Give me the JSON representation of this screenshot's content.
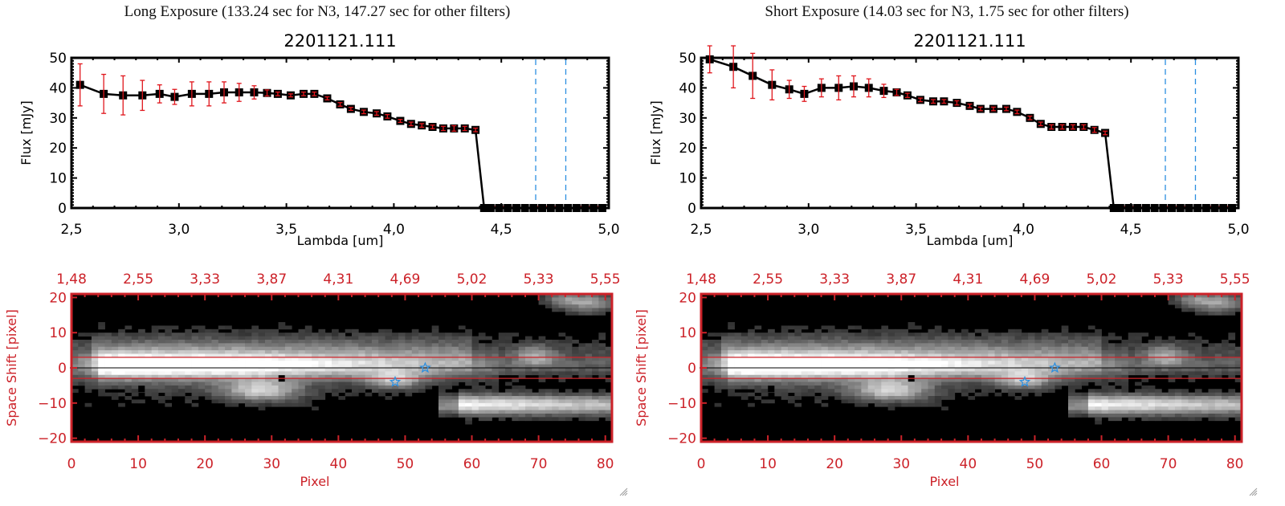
{
  "colors": {
    "axis": "#000000",
    "errorbar": "#e0161c",
    "filter_line": "#2b8fe0",
    "image_axis": "#cc2229",
    "marker": "#000000"
  },
  "chart_data": [
    {
      "type": "line",
      "panel": "left",
      "exposure_title": "Long Exposure (133.24 sec for N3, 147.27 sec for other filters)",
      "title": "2201121.111",
      "xlabel": "Lambda [um]",
      "ylabel": "Flux [mJy]",
      "xlim": [
        2.5,
        5.0
      ],
      "ylim": [
        0,
        50
      ],
      "xticks": [
        "2.5",
        "3.0",
        "3.5",
        "4.0",
        "4.5",
        "5.0"
      ],
      "yticks": [
        "0",
        "10",
        "20",
        "30",
        "40",
        "50"
      ],
      "vlines": [
        4.66,
        4.8
      ],
      "series": [
        {
          "name": "flux",
          "x": [
            2.54,
            2.65,
            2.74,
            2.83,
            2.91,
            2.98,
            3.06,
            3.14,
            3.21,
            3.28,
            3.35,
            3.41,
            3.46,
            3.52,
            3.58,
            3.63,
            3.69,
            3.75,
            3.8,
            3.86,
            3.92,
            3.97,
            4.03,
            4.08,
            4.13,
            4.18,
            4.23,
            4.28,
            4.33,
            4.38,
            4.42,
            4.45,
            4.49,
            4.53,
            4.57,
            4.61,
            4.65,
            4.69,
            4.73,
            4.77,
            4.81,
            4.85,
            4.89,
            4.93,
            4.97
          ],
          "y": [
            41,
            38,
            37.5,
            37.5,
            38,
            37,
            38,
            38,
            38.5,
            38.5,
            38.5,
            38.3,
            38,
            37.5,
            38,
            38,
            36.5,
            34.5,
            33,
            32,
            31.5,
            30.5,
            29,
            28,
            27.5,
            27,
            26.5,
            26.5,
            26.5,
            26,
            0,
            0,
            0,
            0,
            0,
            0,
            0,
            0,
            0,
            0,
            0,
            0,
            0,
            0,
            0
          ],
          "err": [
            7,
            6.5,
            6.5,
            5,
            3,
            2.5,
            4,
            4,
            3.5,
            3,
            2.2,
            1,
            0.6,
            0.5,
            0.6,
            0.6,
            0.5,
            0.6,
            0.5,
            0.6,
            0.6,
            0.6,
            0.5,
            0.6,
            0.6,
            0.6,
            0.7,
            0.9,
            0.7,
            0.6,
            0,
            0,
            0,
            0,
            0,
            0,
            0,
            0,
            0,
            0,
            0,
            0,
            0,
            0,
            0
          ]
        }
      ]
    },
    {
      "type": "line",
      "panel": "right",
      "exposure_title": "Short Exposure (14.03 sec for N3, 1.75 sec for other filters)",
      "title": "2201121.111",
      "xlabel": "Lambda [um]",
      "ylabel": "Flux [mJy]",
      "xlim": [
        2.5,
        5.0
      ],
      "ylim": [
        0,
        50
      ],
      "xticks": [
        "2.5",
        "3.0",
        "3.5",
        "4.0",
        "4.5",
        "5.0"
      ],
      "yticks": [
        "0",
        "10",
        "20",
        "30",
        "40",
        "50"
      ],
      "vlines": [
        4.66,
        4.8
      ],
      "series": [
        {
          "name": "flux",
          "x": [
            2.54,
            2.65,
            2.74,
            2.83,
            2.91,
            2.98,
            3.06,
            3.14,
            3.21,
            3.28,
            3.35,
            3.41,
            3.46,
            3.52,
            3.58,
            3.63,
            3.69,
            3.75,
            3.8,
            3.86,
            3.92,
            3.97,
            4.03,
            4.08,
            4.13,
            4.18,
            4.23,
            4.28,
            4.33,
            4.38,
            4.42,
            4.45,
            4.49,
            4.53,
            4.57,
            4.61,
            4.65,
            4.69,
            4.73,
            4.77,
            4.81,
            4.85,
            4.89,
            4.93,
            4.97
          ],
          "y": [
            49.5,
            47,
            44,
            41,
            39.5,
            38,
            40,
            40,
            40.5,
            40,
            39,
            38.5,
            37.5,
            36,
            35.5,
            35.5,
            35,
            34,
            33,
            33,
            33,
            32,
            30,
            28,
            27,
            27,
            27,
            27,
            26,
            25,
            0,
            0,
            0,
            0,
            0,
            0,
            0,
            0,
            0,
            0,
            0,
            0,
            0,
            0,
            0
          ],
          "err": [
            4.5,
            7,
            7.5,
            5,
            3,
            2.5,
            3,
            4,
            3.5,
            3,
            2.2,
            1,
            0.7,
            0.6,
            0.6,
            0.6,
            0.7,
            0.6,
            0.6,
            0.6,
            0.6,
            0.6,
            0.6,
            0.6,
            0.7,
            0.7,
            0.7,
            0.7,
            0.8,
            0.6,
            0,
            0,
            0,
            0,
            0,
            0,
            0,
            0,
            0,
            0,
            0,
            0,
            0,
            0,
            0
          ]
        }
      ]
    },
    {
      "type": "heatmap",
      "panel": "left",
      "xlabel": "Pixel",
      "ylabel": "Space Shift [pixel]",
      "xlim": [
        0,
        81
      ],
      "ylim": [
        -21,
        21
      ],
      "xticks": [
        "0",
        "10",
        "20",
        "30",
        "40",
        "50",
        "60",
        "70",
        "80"
      ],
      "yticks": [
        "-20",
        "-10",
        "0",
        "10",
        "20"
      ],
      "top_ticks": [
        "1.48",
        "2.55",
        "3.33",
        "3.87",
        "4.31",
        "4.69",
        "5.02",
        "5.33",
        "5.55"
      ],
      "hlines": [
        3,
        -3
      ],
      "center_line": 0,
      "stars": [
        {
          "x": 53,
          "y": 0
        },
        {
          "x": 48.5,
          "y": -4
        }
      ],
      "dark_pixels": [
        {
          "x": 10.5,
          "y": -6
        },
        {
          "x": 31.5,
          "y": -3
        }
      ]
    },
    {
      "type": "heatmap",
      "panel": "right",
      "xlabel": "Pixel",
      "ylabel": "Space Shift [pixel]",
      "xlim": [
        0,
        81
      ],
      "ylim": [
        -21,
        21
      ],
      "xticks": [
        "0",
        "10",
        "20",
        "30",
        "40",
        "50",
        "60",
        "70",
        "80"
      ],
      "yticks": [
        "-20",
        "-10",
        "0",
        "10",
        "20"
      ],
      "top_ticks": [
        "1.48",
        "2.55",
        "3.33",
        "3.87",
        "4.31",
        "4.69",
        "5.02",
        "5.33",
        "5.55"
      ],
      "hlines": [
        3,
        -3
      ],
      "center_line": 0,
      "stars": [
        {
          "x": 53,
          "y": 0
        },
        {
          "x": 48.5,
          "y": -4
        }
      ],
      "dark_pixels": [
        {
          "x": 10.5,
          "y": -6
        },
        {
          "x": 31.5,
          "y": -3
        }
      ]
    }
  ]
}
